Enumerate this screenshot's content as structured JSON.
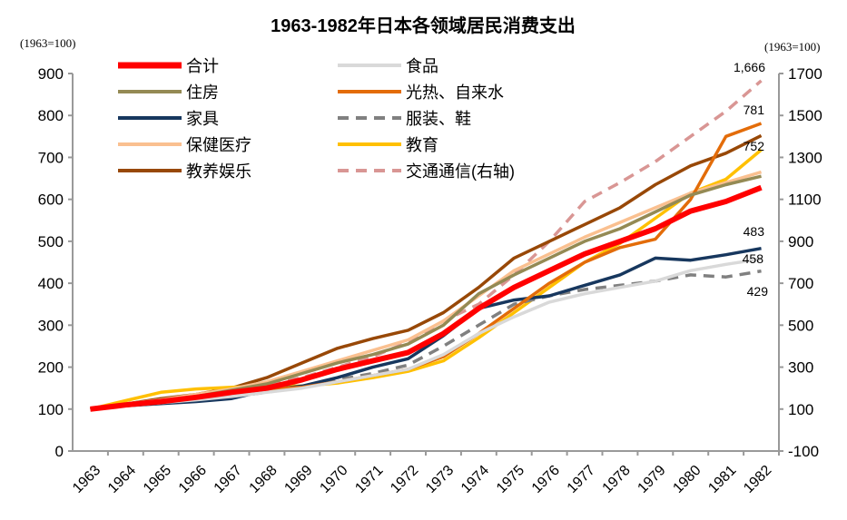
{
  "chart_data": {
    "type": "line",
    "title": "1963-1982年日本各领域居民消费支出",
    "left_unit": "(1963=100)",
    "right_unit": "(1963=100)",
    "ylim": [
      0,
      900
    ],
    "y2lim": [
      -100,
      1700
    ],
    "yticks": [
      0,
      100,
      200,
      300,
      400,
      500,
      600,
      700,
      800,
      900
    ],
    "y2ticks": [
      -100,
      100,
      300,
      500,
      700,
      900,
      1100,
      1300,
      1500,
      1700
    ],
    "x": [
      "1963",
      "1964",
      "1965",
      "1966",
      "1967",
      "1968",
      "1969",
      "1970",
      "1971",
      "1972",
      "1973",
      "1974",
      "1975",
      "1976",
      "1977",
      "1978",
      "1979",
      "1980",
      "1981",
      "1982"
    ],
    "legend": "top-left",
    "grid": false,
    "series": [
      {
        "name": "合计",
        "color": "#ff0000",
        "axis": "left",
        "dash": false,
        "values": [
          100,
          110,
          118,
          128,
          140,
          150,
          170,
          195,
          215,
          235,
          280,
          340,
          390,
          430,
          470,
          500,
          530,
          572,
          595,
          628
        ]
      },
      {
        "name": "食品",
        "color": "#d9d9d9",
        "axis": "left",
        "dash": false,
        "values": [
          100,
          108,
          115,
          122,
          130,
          140,
          150,
          165,
          180,
          195,
          230,
          280,
          320,
          355,
          375,
          390,
          405,
          430,
          445,
          458
        ]
      },
      {
        "name": "住房",
        "color": "#948a54",
        "axis": "left",
        "dash": false,
        "values": [
          100,
          110,
          120,
          130,
          145,
          160,
          185,
          210,
          230,
          255,
          300,
          375,
          420,
          460,
          500,
          530,
          570,
          610,
          635,
          655
        ]
      },
      {
        "name": "光热、自来水",
        "color": "#e36c09",
        "axis": "left",
        "dash": false,
        "values": [
          100,
          108,
          115,
          125,
          138,
          148,
          152,
          165,
          180,
          195,
          225,
          280,
          340,
          400,
          450,
          485,
          505,
          600,
          750,
          781
        ]
      },
      {
        "name": "家具",
        "color": "#17375e",
        "axis": "left",
        "dash": false,
        "values": [
          100,
          108,
          113,
          118,
          125,
          145,
          155,
          175,
          200,
          220,
          275,
          340,
          360,
          370,
          395,
          420,
          460,
          455,
          468,
          483
        ]
      },
      {
        "name": "服装、鞋",
        "color": "#808080",
        "axis": "left",
        "dash": true,
        "values": [
          100,
          108,
          115,
          122,
          130,
          140,
          155,
          170,
          185,
          205,
          250,
          300,
          350,
          370,
          385,
          395,
          405,
          420,
          415,
          429
        ]
      },
      {
        "name": "保健医疗",
        "color": "#fac090",
        "axis": "left",
        "dash": false,
        "values": [
          100,
          112,
          122,
          135,
          148,
          165,
          190,
          215,
          240,
          265,
          310,
          370,
          430,
          470,
          510,
          545,
          580,
          615,
          640,
          665
        ]
      },
      {
        "name": "教育",
        "color": "#ffc000",
        "axis": "left",
        "dash": false,
        "values": [
          100,
          120,
          140,
          148,
          152,
          155,
          155,
          162,
          175,
          190,
          215,
          270,
          330,
          390,
          450,
          495,
          555,
          615,
          648,
          718
        ]
      },
      {
        "name": "教养娱乐",
        "color": "#984807",
        "axis": "left",
        "dash": false,
        "values": [
          100,
          112,
          125,
          135,
          150,
          175,
          210,
          245,
          268,
          288,
          330,
          390,
          460,
          500,
          540,
          580,
          635,
          680,
          710,
          752
        ]
      },
      {
        "name": "交通通信(右轴)",
        "color": "#d99694",
        "axis": "right",
        "dash": true,
        "values": [
          100,
          120,
          140,
          164,
          190,
          220,
          250,
          300,
          350,
          420,
          520,
          600,
          740,
          900,
          1090,
          1180,
          1280,
          1400,
          1520,
          1666
        ]
      }
    ],
    "annotations": [
      "1,666",
      "781",
      "752",
      "483",
      "458",
      "429"
    ]
  }
}
